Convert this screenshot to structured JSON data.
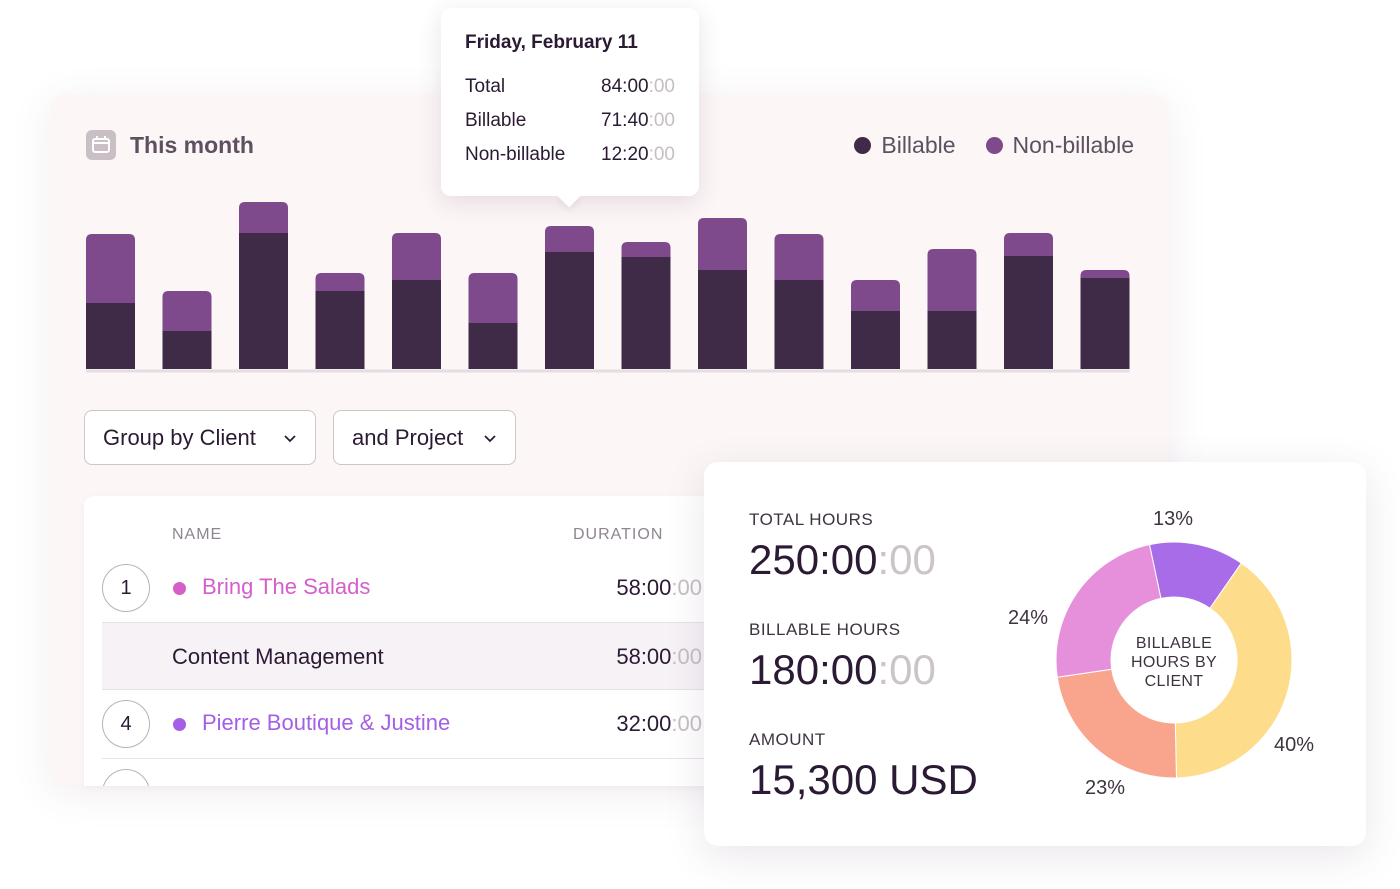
{
  "header": {
    "period_label": "This month",
    "calendar_icon": "calendar-icon"
  },
  "legend": [
    {
      "label": "Billable",
      "color": "#3f2a47"
    },
    {
      "label": "Non-billable",
      "color": "#7e4a8c"
    }
  ],
  "chart_data": {
    "type": "bar",
    "stacked": true,
    "legend_position": "top-right",
    "grid": false,
    "series": [
      {
        "name": "Billable",
        "color": "#3f2a47",
        "values": [
          66,
          38,
          136,
          78,
          89,
          46,
          117,
          112,
          99,
          89,
          58,
          58,
          113,
          91
        ]
      },
      {
        "name": "Non-billable",
        "color": "#7e4a8c",
        "values": [
          69,
          40,
          31,
          18,
          47,
          50,
          26,
          15,
          52,
          46,
          31,
          62,
          23,
          8
        ]
      }
    ]
  },
  "tooltip": {
    "title": "Friday, February 11",
    "rows": [
      {
        "label": "Total",
        "value": "84:00",
        "seconds": ":00"
      },
      {
        "label": "Billable",
        "value": "71:40",
        "seconds": ":00"
      },
      {
        "label": "Non-billable",
        "value": "12:20",
        "seconds": ":00"
      }
    ]
  },
  "controls": {
    "group_by": "Group by Client",
    "sub_group": "and Project"
  },
  "table": {
    "headers": {
      "name": "NAME",
      "duration": "DURATION"
    },
    "rows": [
      {
        "rank": "1",
        "name": "Bring The Salads",
        "color": "#d45fcb",
        "duration": "58:00",
        "seconds": ":00"
      },
      {
        "name": "Content Management",
        "duration": "58:00",
        "seconds": ":00"
      },
      {
        "rank": "4",
        "name": "Pierre Boutique & Justine",
        "color": "#a55ee6",
        "duration": "32:00",
        "seconds": ":00"
      }
    ]
  },
  "summary": {
    "total_label": "TOTAL HOURS",
    "total_value": "250:00",
    "total_seconds": ":00",
    "billable_label": "BILLABLE HOURS",
    "billable_value": "180:00",
    "billable_seconds": ":00",
    "amount_label": "AMOUNT",
    "amount_value": "15,300 USD"
  },
  "donut": {
    "center_label": [
      "BILLABLE",
      "HOURS BY",
      "CLIENT"
    ],
    "slices": [
      {
        "percent": 13,
        "label": "13%",
        "color": "#a96ce8"
      },
      {
        "percent": 40,
        "label": "40%",
        "color": "#fddc8c"
      },
      {
        "percent": 23,
        "label": "23%",
        "color": "#f9a58e"
      },
      {
        "percent": 24,
        "label": "24%",
        "color": "#e690dc"
      }
    ]
  }
}
